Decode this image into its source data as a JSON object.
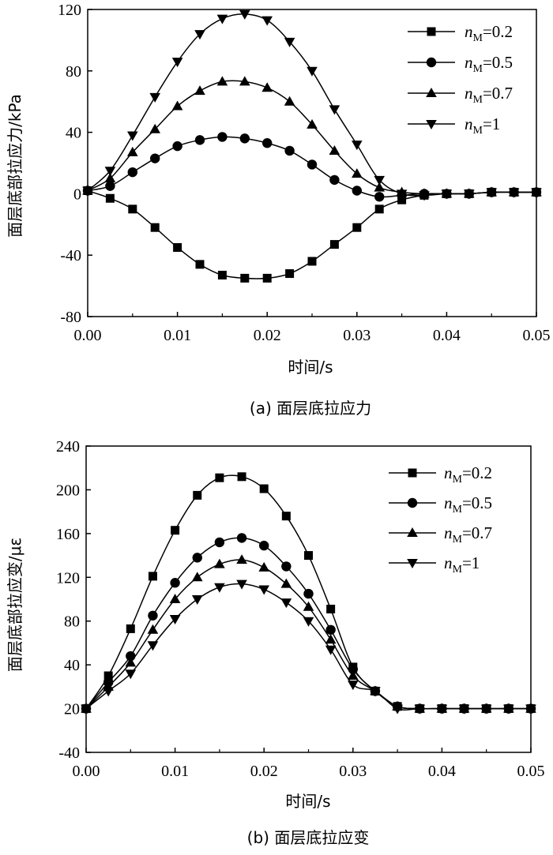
{
  "chart_data": [
    {
      "type": "line",
      "caption": "(a) 面层底拉应力",
      "xlabel": "时间/s",
      "ylabel": "面层底部拉应力/kPa",
      "xlim": [
        0,
        0.05
      ],
      "ylim": [
        -80,
        120
      ],
      "xticks": [
        "0.00",
        "0.01",
        "0.02",
        "0.03",
        "0.04",
        "0.05"
      ],
      "yticks": [
        "-80",
        "-40",
        "0",
        "40",
        "80",
        "120"
      ],
      "legend_position": "top-right",
      "series": [
        {
          "name": "nM=0.2",
          "name_n": "n",
          "name_sub": "M",
          "name_rest": "=0.2",
          "marker": "square",
          "x": [
            0.0,
            0.0025,
            0.005,
            0.0075,
            0.01,
            0.0125,
            0.015,
            0.0175,
            0.02,
            0.0225,
            0.025,
            0.0275,
            0.03,
            0.0325,
            0.035,
            0.0375,
            0.04,
            0.0425,
            0.045,
            0.0475,
            0.05
          ],
          "y": [
            2,
            -3,
            -10,
            -22,
            -35,
            -46,
            -53,
            -55,
            -55,
            -52,
            -44,
            -33,
            -22,
            -10,
            -4,
            -1,
            0,
            0,
            1,
            1,
            1
          ]
        },
        {
          "name": "nM=0.5",
          "name_n": "n",
          "name_sub": "M",
          "name_rest": "=0.5",
          "marker": "circle",
          "x": [
            0.0,
            0.0025,
            0.005,
            0.0075,
            0.01,
            0.0125,
            0.015,
            0.0175,
            0.02,
            0.0225,
            0.025,
            0.0275,
            0.03,
            0.0325,
            0.035,
            0.0375,
            0.04,
            0.0425,
            0.045,
            0.0475,
            0.05
          ],
          "y": [
            2,
            5,
            14,
            23,
            31,
            35,
            37,
            36,
            33,
            28,
            19,
            9,
            2,
            -2,
            -1,
            0,
            0,
            0,
            1,
            1,
            1
          ]
        },
        {
          "name": "nM=0.7",
          "name_n": "n",
          "name_sub": "M",
          "name_rest": "=0.7",
          "marker": "triangle-up",
          "x": [
            0.0,
            0.0025,
            0.005,
            0.0075,
            0.01,
            0.0125,
            0.015,
            0.0175,
            0.02,
            0.0225,
            0.025,
            0.0275,
            0.03,
            0.0325,
            0.035,
            0.0375,
            0.04,
            0.0425,
            0.045,
            0.0475,
            0.05
          ],
          "y": [
            2,
            10,
            27,
            42,
            57,
            67,
            73,
            73,
            69,
            60,
            45,
            28,
            13,
            4,
            1,
            0,
            0,
            0,
            1,
            1,
            1
          ]
        },
        {
          "name": "nM=1",
          "name_n": "n",
          "name_sub": "M",
          "name_rest": "=1",
          "marker": "triangle-down",
          "x": [
            0.0,
            0.0025,
            0.005,
            0.0075,
            0.01,
            0.0125,
            0.015,
            0.0175,
            0.02,
            0.0225,
            0.025,
            0.0275,
            0.03,
            0.0325,
            0.035,
            0.0375,
            0.04,
            0.0425,
            0.045,
            0.0475,
            0.05
          ],
          "y": [
            2,
            15,
            38,
            63,
            86,
            104,
            114,
            117,
            113,
            99,
            80,
            55,
            32,
            9,
            0,
            -1,
            0,
            0,
            1,
            1,
            1
          ]
        }
      ]
    },
    {
      "type": "line",
      "caption": "(b) 面层底拉应变",
      "xlabel": "时间/s",
      "ylabel": "面层底部拉应变/με",
      "xlim": [
        0,
        0.05
      ],
      "ylim": [
        -40,
        240
      ],
      "xticks": [
        "0.00",
        "0.01",
        "0.02",
        "0.03",
        "0.04",
        "0.05"
      ],
      "yticks": [
        "-40",
        "20",
        "40",
        "80",
        "120",
        "160",
        "200",
        "240"
      ],
      "legend_position": "top-right",
      "series": [
        {
          "name": "nM=0.2",
          "name_n": "n",
          "name_sub": "M",
          "name_rest": "=0.2",
          "marker": "square",
          "x": [
            0.0,
            0.0025,
            0.005,
            0.0075,
            0.01,
            0.0125,
            0.015,
            0.0175,
            0.02,
            0.0225,
            0.025,
            0.0275,
            0.03,
            0.0325,
            0.035,
            0.0375,
            0.04,
            0.0425,
            0.045,
            0.0475,
            0.05
          ],
          "y": [
            20,
            35,
            73,
            121,
            163,
            195,
            211,
            212,
            201,
            176,
            140,
            91,
            39,
            28,
            21,
            20,
            20,
            20,
            20,
            20,
            20
          ]
        },
        {
          "name": "nM=0.5",
          "name_n": "n",
          "name_sub": "M",
          "name_rest": "=0.5",
          "marker": "circle",
          "x": [
            0.0,
            0.0025,
            0.005,
            0.0075,
            0.01,
            0.0125,
            0.015,
            0.0175,
            0.02,
            0.0225,
            0.025,
            0.0275,
            0.03,
            0.0325,
            0.035,
            0.0375,
            0.04,
            0.0425,
            0.045,
            0.0475,
            0.05
          ],
          "y": [
            20,
            32,
            48,
            85,
            115,
            138,
            152,
            156,
            149,
            130,
            105,
            72,
            38,
            28,
            21,
            20,
            20,
            20,
            20,
            20,
            20
          ]
        },
        {
          "name": "nM=0.7",
          "name_n": "n",
          "name_sub": "M",
          "name_rest": "=0.7",
          "marker": "triangle-up",
          "x": [
            0.0,
            0.0025,
            0.005,
            0.0075,
            0.01,
            0.0125,
            0.015,
            0.0175,
            0.02,
            0.0225,
            0.025,
            0.0275,
            0.03,
            0.0325,
            0.035,
            0.0375,
            0.04,
            0.0425,
            0.045,
            0.0475,
            0.05
          ],
          "y": [
            20,
            30,
            42,
            72,
            100,
            120,
            132,
            136,
            129,
            114,
            93,
            63,
            35,
            28,
            21,
            20,
            20,
            20,
            20,
            20,
            20
          ]
        },
        {
          "name": "nM=1",
          "name_n": "n",
          "name_sub": "M",
          "name_rest": "=1",
          "marker": "triangle-down",
          "x": [
            0.0,
            0.0025,
            0.005,
            0.0075,
            0.01,
            0.0125,
            0.015,
            0.0175,
            0.02,
            0.0225,
            0.025,
            0.0275,
            0.03,
            0.0325,
            0.035,
            0.0375,
            0.04,
            0.0425,
            0.045,
            0.0475,
            0.05
          ],
          "y": [
            20,
            28,
            36,
            58,
            82,
            100,
            111,
            114,
            109,
            97,
            80,
            54,
            31,
            28,
            20,
            20,
            20,
            20,
            20,
            20,
            20
          ]
        }
      ]
    }
  ]
}
